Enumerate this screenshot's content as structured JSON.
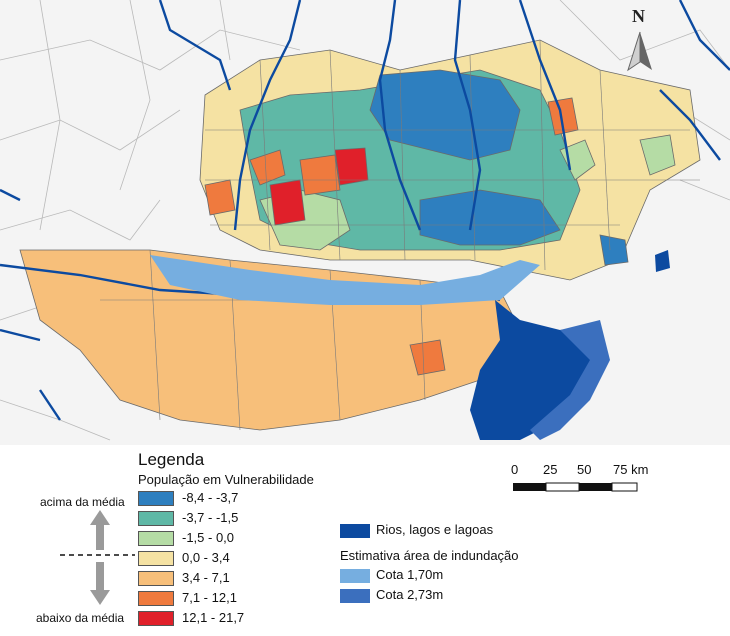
{
  "north": {
    "letter": "N"
  },
  "legend": {
    "title": "Legenda",
    "subtitle": "População em Vulnerabilidade",
    "above_label": "acima da média",
    "below_label": "abaixo da média",
    "classes": [
      {
        "label": "-8,4 - -3,7",
        "color": "#2e7fbf"
      },
      {
        "label": "-3,7 - -1,5",
        "color": "#5fb8a6"
      },
      {
        "label": "-1,5 - 0,0",
        "color": "#b5dca5"
      },
      {
        "label": "0,0 - 3,4",
        "color": "#f5e2a3"
      },
      {
        "label": "3,4 - 7,1",
        "color": "#f7bf7a"
      },
      {
        "label": "7,1 - 12,1",
        "color": "#ef7a3e"
      },
      {
        "label": "12,1 - 21,7",
        "color": "#e0202a"
      }
    ]
  },
  "scale": {
    "ticks": [
      "0",
      "25",
      "50",
      "75 km"
    ]
  },
  "water_legend": {
    "rivers_label": "Rios, lagos e lagoas",
    "rivers_color": "#0c4aa0",
    "flood_heading": "Estimativa área de indundação",
    "flood_items": [
      {
        "label": "Cota 1,70m",
        "color": "#76aee0"
      },
      {
        "label": "Cota 2,73m",
        "color": "#3b6fbe"
      }
    ]
  }
}
